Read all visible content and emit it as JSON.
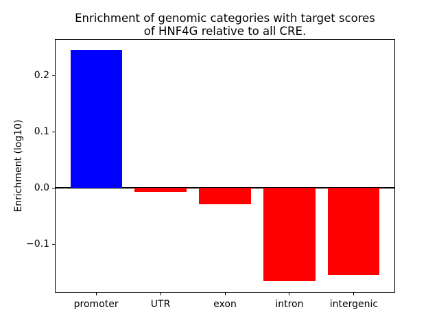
{
  "chart_data": {
    "type": "bar",
    "title": "Enrichment of genomic categories with target scores\nof HNF4G relative to all CRE.",
    "title_lines": [
      "Enrichment of genomic categories with target scores",
      "of HNF4G relative to all CRE."
    ],
    "xlabel": "",
    "ylabel": "Enrichment (log10)",
    "categories": [
      "promoter",
      "UTR",
      "exon",
      "intron",
      "intergenic"
    ],
    "values": [
      0.245,
      -0.008,
      -0.03,
      -0.166,
      -0.155
    ],
    "bar_colors": [
      "#0000ff",
      "#ff0000",
      "#ff0000",
      "#ff0000",
      "#ff0000"
    ],
    "positive_color": "#0000ff",
    "negative_color": "#ff0000",
    "ylim": [
      -0.187,
      0.265
    ],
    "xlim": [
      -0.64,
      4.64
    ],
    "bar_width": 0.8,
    "yticks": [
      0.2,
      0.1,
      0.0,
      -0.1
    ],
    "ytick_labels": [
      "0.2",
      "0.1",
      "0.0",
      "−0.1"
    ],
    "zero_line": true,
    "grid": false,
    "legend": "none"
  }
}
